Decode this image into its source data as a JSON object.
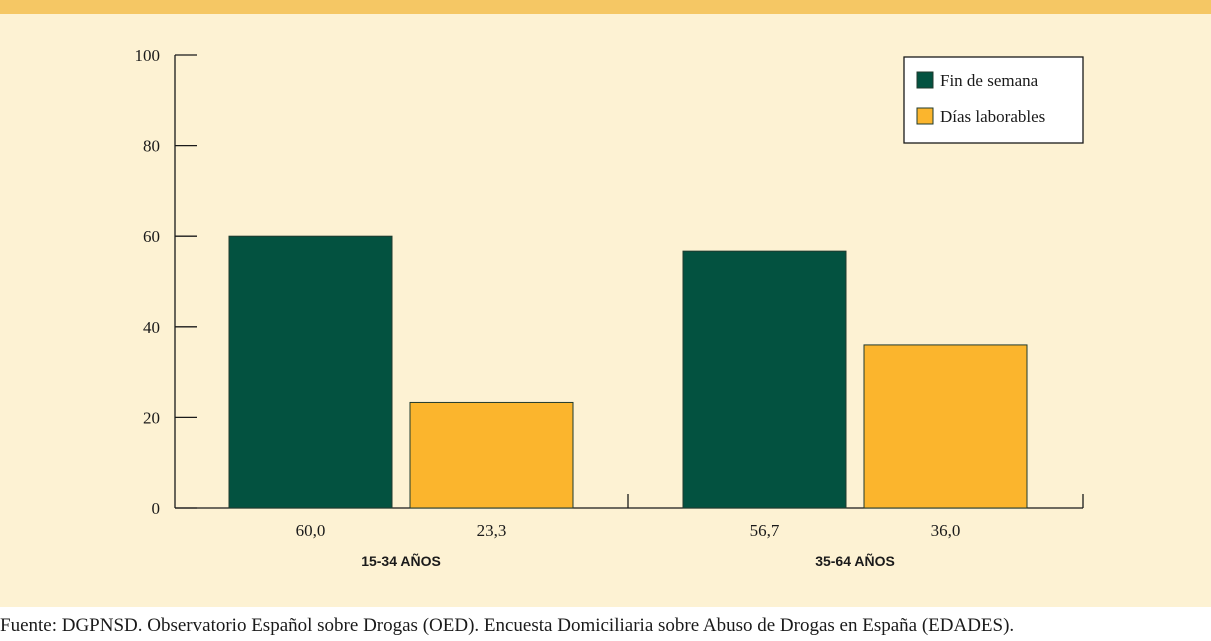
{
  "chart_data": {
    "type": "bar",
    "categories": [
      "15-34 AÑOS",
      "35-64 AÑOS"
    ],
    "series": [
      {
        "name": "Fin de semana",
        "values": [
          60.0,
          56.7
        ],
        "labels": [
          "60,0",
          "56,7"
        ],
        "color": "#035240"
      },
      {
        "name": "Días laborables",
        "values": [
          23.3,
          36.0
        ],
        "labels": [
          "23,3",
          "36,0"
        ],
        "color": "#fbb52d"
      }
    ],
    "yticks": [
      0,
      20,
      40,
      60,
      80,
      100
    ],
    "ylim": [
      0,
      100
    ],
    "grid": false,
    "legend_position": "top-right",
    "xlabel": "",
    "ylabel": "",
    "title": ""
  },
  "colors": {
    "band": "#f5c764",
    "panel": "#fdf2d3",
    "axis": "#1a1a1a"
  },
  "source": "Fuente: DGPNSD. Observatorio Español sobre Drogas (OED). Encuesta Domiciliaria sobre Abuso de Drogas en España (EDADES)."
}
